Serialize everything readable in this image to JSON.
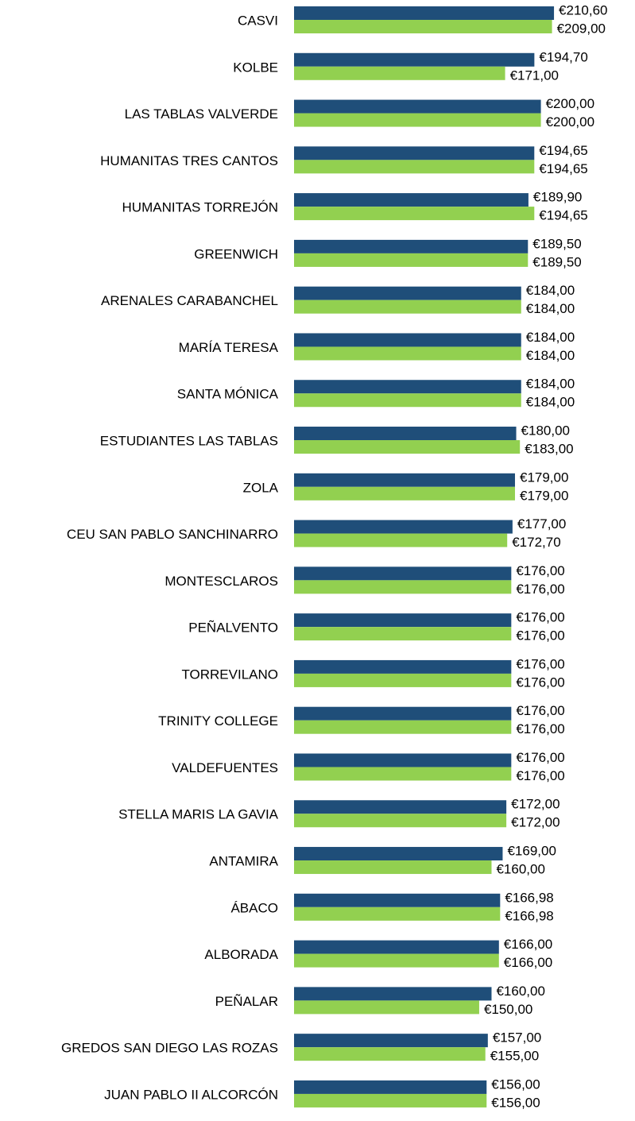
{
  "chart_data": {
    "type": "hbar",
    "categories": [
      "CASVI",
      "KOLBE",
      "LAS TABLAS VALVERDE",
      "HUMANITAS TRES CANTOS",
      "HUMANITAS TORREJÓN",
      "GREENWICH",
      "ARENALES CARABANCHEL",
      "MARÍA TERESA",
      "SANTA MÓNICA",
      "ESTUDIANTES LAS TABLAS",
      "ZOLA",
      "CEU SAN PABLO SANCHINARRO",
      "MONTESCLAROS",
      "PEÑALVENTO",
      "TORREVILANO",
      "TRINITY COLLEGE",
      "VALDEFUENTES",
      "STELLA MARIS LA GAVIA",
      "ANTAMIRA",
      "ÁBACO",
      "ALBORADA",
      "PEÑALAR",
      "GREDOS SAN DIEGO LAS ROZAS",
      "JUAN PABLO II ALCORCÓN"
    ],
    "series": [
      {
        "color": "#1f4e79",
        "values": [
          210.6,
          194.7,
          200,
          194.65,
          189.9,
          189.5,
          184,
          184,
          184,
          180,
          179,
          177,
          176,
          176,
          176,
          176,
          176,
          172,
          169,
          166.98,
          166,
          160,
          157,
          156
        ],
        "value_labels": [
          "€210,60",
          "€194,70",
          "€200,00",
          "€194,65",
          "€189,90",
          "€189,50",
          "€184,00",
          "€184,00",
          "€184,00",
          "€180,00",
          "€179,00",
          "€177,00",
          "€176,00",
          "€176,00",
          "€176,00",
          "€176,00",
          "€176,00",
          "€172,00",
          "€169,00",
          "€166,98",
          "€166,00",
          "€160,00",
          "€157,00",
          "€156,00"
        ]
      },
      {
        "color": "#92d050",
        "values": [
          209,
          171,
          200,
          194.65,
          194.65,
          189.5,
          184,
          184,
          184,
          183,
          179,
          172.7,
          176,
          176,
          176,
          176,
          176,
          172,
          160,
          166.98,
          166,
          150,
          155,
          156
        ],
        "value_labels": [
          "€209,00",
          "€171,00",
          "€200,00",
          "€194,65",
          "€194,65",
          "€189,50",
          "€184,00",
          "€184,00",
          "€184,00",
          "€183,00",
          "€179,00",
          "€172,70",
          "€176,00",
          "€176,00",
          "€176,00",
          "€176,00",
          "€176,00",
          "€172,00",
          "€160,00",
          "€166,98",
          "€166,00",
          "€150,00",
          "€155,00",
          "€156,00"
        ]
      }
    ]
  }
}
